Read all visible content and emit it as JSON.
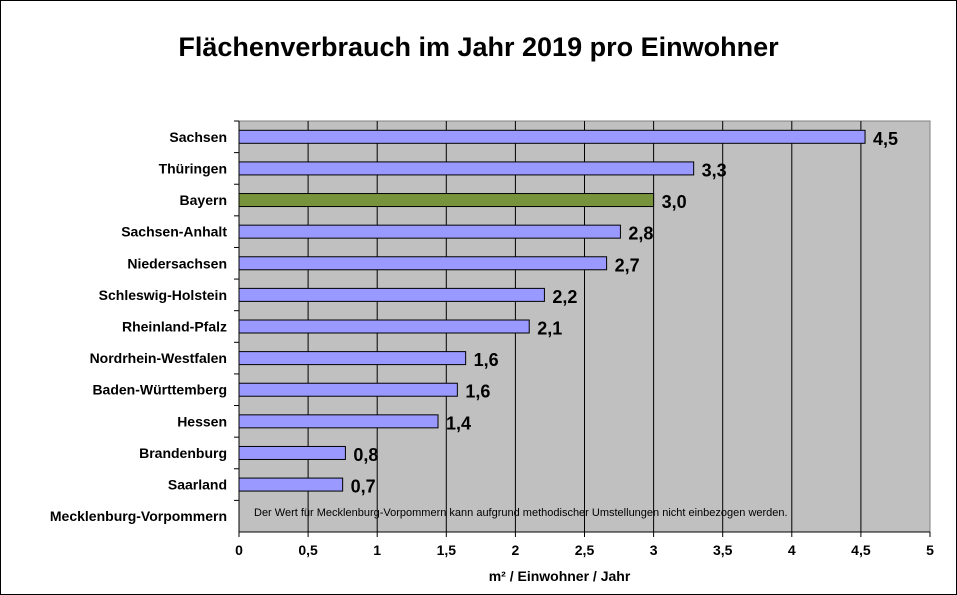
{
  "chart_data": {
    "type": "bar",
    "orientation": "horizontal",
    "title": "Flächenverbrauch im Jahr 2019 pro Einwohner",
    "xlabel": "m² / Einwohner / Jahr",
    "ylabel": "",
    "xlim": [
      0,
      5
    ],
    "x_ticks": [
      "0",
      "0,5",
      "1",
      "1,5",
      "2",
      "2,5",
      "3",
      "3,5",
      "4",
      "4,5",
      "5"
    ],
    "grid": true,
    "categories": [
      "Sachsen",
      "Thüringen",
      "Bayern",
      "Sachsen-Anhalt",
      "Niedersachsen",
      "Schleswig-Holstein",
      "Rheinland-Pfalz",
      "Nordrhein-Westfalen",
      "Baden-Württemberg",
      "Hessen",
      "Brandenburg",
      "Saarland",
      "Mecklenburg-Vorpommern"
    ],
    "values": [
      4.53,
      3.29,
      3.0,
      2.76,
      2.66,
      2.21,
      2.1,
      1.64,
      1.58,
      1.44,
      0.77,
      0.75,
      null
    ],
    "value_labels": [
      "4,5",
      "3,3",
      "3,0",
      "2,8",
      "2,7",
      "2,2",
      "2,1",
      "1,6",
      "1,6",
      "1,4",
      "0,8",
      "0,7",
      ""
    ],
    "highlight": "Bayern",
    "colors": {
      "bar": "#9999ff",
      "highlight": "#77933c",
      "plot_background": "#c0c0c0",
      "gridline": "#000000"
    },
    "annotation": "Der Wert für Mecklenburg-Vorpommern kann aufgrund methodischer Umstellungen nicht einbezogen werden."
  }
}
